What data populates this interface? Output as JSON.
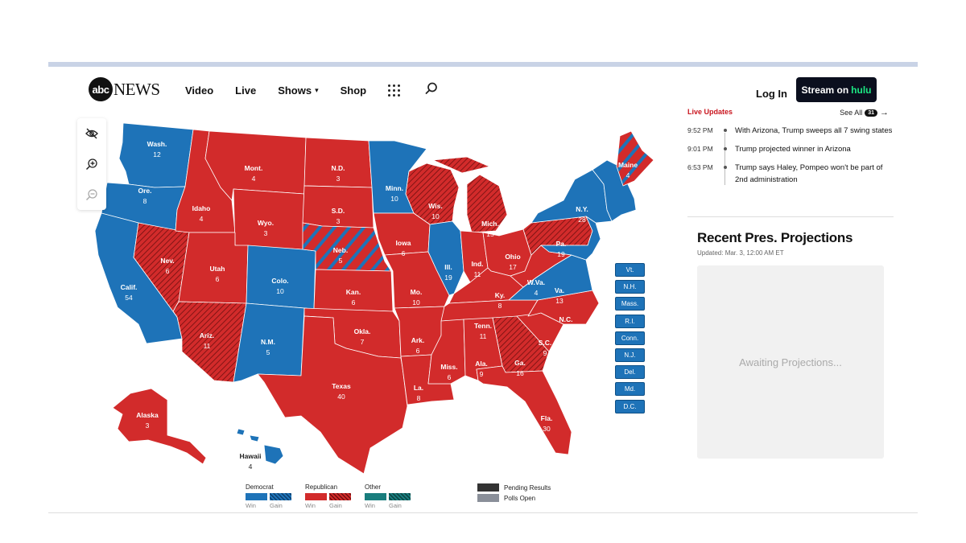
{
  "header": {
    "logo_abc": "abc",
    "logo_news": "NEWS",
    "nav": [
      {
        "label": "Video"
      },
      {
        "label": "Live"
      },
      {
        "label": "Shows",
        "chevron": "▾"
      },
      {
        "label": "Shop"
      }
    ],
    "login": "Log In",
    "stream_prefix": "Stream on",
    "stream_brand": "hulu"
  },
  "map_controls": [
    "hide-icon",
    "zoom-in-icon",
    "zoom-out-icon"
  ],
  "colors": {
    "dem": "#1e73b8",
    "rep": "#d22b2b",
    "other": "#197d7d",
    "pending": "#333333",
    "polls_open": "#8a8f99"
  },
  "states": {
    "wa": {
      "name": "Wash.",
      "ev": "12",
      "party": "dem"
    },
    "or": {
      "name": "Ore.",
      "ev": "8",
      "party": "dem"
    },
    "ca": {
      "name": "Calif.",
      "ev": "54",
      "party": "dem"
    },
    "nv": {
      "name": "Nev.",
      "ev": "6",
      "party": "rep-gain"
    },
    "id": {
      "name": "Idaho",
      "ev": "4",
      "party": "rep"
    },
    "mt": {
      "name": "Mont.",
      "ev": "4",
      "party": "rep"
    },
    "wy": {
      "name": "Wyo.",
      "ev": "3",
      "party": "rep"
    },
    "ut": {
      "name": "Utah",
      "ev": "6",
      "party": "rep"
    },
    "az": {
      "name": "Ariz.",
      "ev": "11",
      "party": "rep-gain"
    },
    "co": {
      "name": "Colo.",
      "ev": "10",
      "party": "dem"
    },
    "nm": {
      "name": "N.M.",
      "ev": "5",
      "party": "dem"
    },
    "nd": {
      "name": "N.D.",
      "ev": "3",
      "party": "rep"
    },
    "sd": {
      "name": "S.D.",
      "ev": "3",
      "party": "rep"
    },
    "ne": {
      "name": "Neb.",
      "ev": "5",
      "party": "rep"
    },
    "ks": {
      "name": "Kan.",
      "ev": "6",
      "party": "rep"
    },
    "ok": {
      "name": "Okla.",
      "ev": "7",
      "party": "rep"
    },
    "tx": {
      "name": "Texas",
      "ev": "40",
      "party": "rep"
    },
    "mn": {
      "name": "Minn.",
      "ev": "10",
      "party": "dem"
    },
    "ia": {
      "name": "Iowa",
      "ev": "6",
      "party": "rep"
    },
    "mo": {
      "name": "Mo.",
      "ev": "10",
      "party": "rep"
    },
    "ar": {
      "name": "Ark.",
      "ev": "6",
      "party": "rep"
    },
    "la": {
      "name": "La.",
      "ev": "8",
      "party": "rep"
    },
    "wi": {
      "name": "Wis.",
      "ev": "10",
      "party": "rep-gain"
    },
    "il": {
      "name": "Ill.",
      "ev": "19",
      "party": "dem"
    },
    "mi": {
      "name": "Mich.",
      "ev": "15",
      "party": "rep-gain"
    },
    "in": {
      "name": "Ind.",
      "ev": "11",
      "party": "rep"
    },
    "oh": {
      "name": "Ohio",
      "ev": "17",
      "party": "rep"
    },
    "ky": {
      "name": "Ky.",
      "ev": "8",
      "party": "rep"
    },
    "tn": {
      "name": "Tenn.",
      "ev": "11",
      "party": "rep"
    },
    "ms": {
      "name": "Miss.",
      "ev": "6",
      "party": "rep"
    },
    "al": {
      "name": "Ala.",
      "ev": "9",
      "party": "rep"
    },
    "ga": {
      "name": "Ga.",
      "ev": "16",
      "party": "rep-gain"
    },
    "fl": {
      "name": "Fla.",
      "ev": "30",
      "party": "rep"
    },
    "sc": {
      "name": "S.C.",
      "ev": "9",
      "party": "rep"
    },
    "nc": {
      "name": "N.C.",
      "ev": "16",
      "party": "rep"
    },
    "va": {
      "name": "Va.",
      "ev": "13",
      "party": "dem"
    },
    "wv": {
      "name": "W.Va.",
      "ev": "4",
      "party": "rep"
    },
    "pa": {
      "name": "Pa.",
      "ev": "19",
      "party": "rep-gain"
    },
    "ny": {
      "name": "N.Y.",
      "ev": "28",
      "party": "dem"
    },
    "me": {
      "name": "Maine",
      "ev": "4",
      "party": "dem"
    },
    "ak": {
      "name": "Alaska",
      "ev": "3",
      "party": "rep"
    },
    "hi": {
      "name": "Hawaii",
      "ev": "4",
      "party": "dem"
    }
  },
  "small_states": [
    "Vt.",
    "N.H.",
    "Mass.",
    "R.I.",
    "Conn.",
    "N.J.",
    "Del.",
    "Md.",
    "D.C."
  ],
  "legend": {
    "democrat": "Democrat",
    "republican": "Republican",
    "other": "Other",
    "win": "Win",
    "gain": "Gain",
    "pending": "Pending Results",
    "polls_open": "Polls Open"
  },
  "sidebar": {
    "live_title": "Live Updates",
    "see_all": "See All",
    "count": "31",
    "updates": [
      {
        "time": "9:52 PM",
        "text": "With Arizona, Trump sweeps all 7 swing states"
      },
      {
        "time": "9:01 PM",
        "text": "Trump projected winner in Arizona"
      },
      {
        "time": "6:53 PM",
        "text": "Trump says Haley, Pompeo won't be part of 2nd administration"
      }
    ],
    "projections_title": "Recent Pres. Projections",
    "updated": "Updated: Mar. 3, 12:00 AM ET",
    "awaiting": "Awaiting Projections..."
  }
}
